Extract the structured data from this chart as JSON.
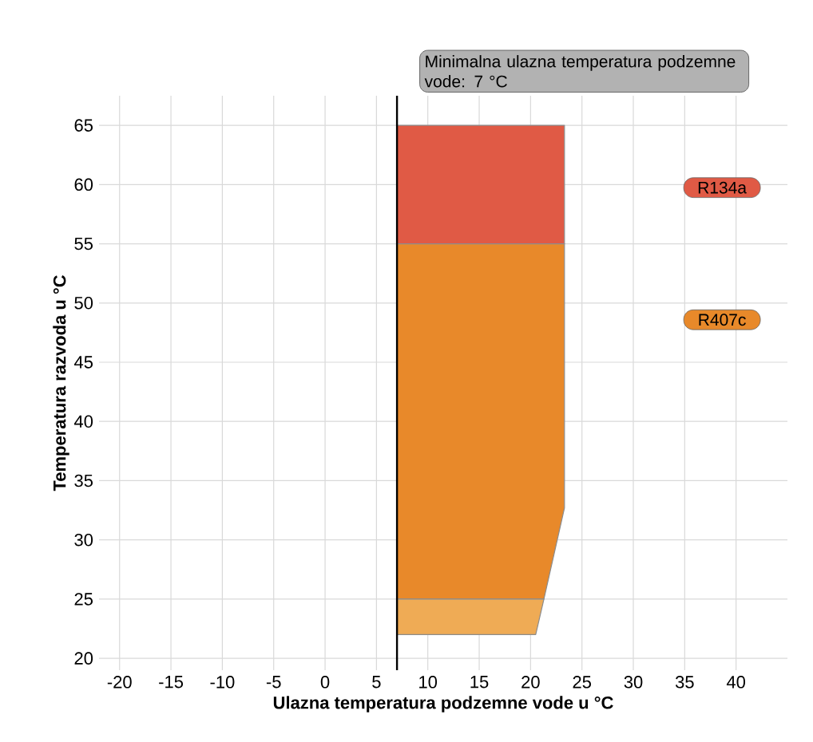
{
  "chart_data": {
    "type": "area",
    "xlabel": "Ulazna temperatura podzemne vode u °C",
    "ylabel": "Temperatura razvoda u °C",
    "series": [
      {
        "name": "R134a",
        "color": "#e05a45",
        "x": [
          7,
          7,
          23.3,
          23.3
        ],
        "values": [
          55,
          65,
          65,
          55
        ]
      },
      {
        "name": "R407c",
        "color": "#e8892a",
        "x": [
          7,
          7,
          23.3,
          23.3,
          21.3
        ],
        "values": [
          25,
          55,
          55,
          32.7,
          25
        ]
      },
      {
        "color": "#efab55",
        "x": [
          7,
          7,
          21.3,
          20.5
        ],
        "values": [
          22,
          25,
          25,
          22
        ]
      }
    ],
    "ref_lines": [
      {
        "axis": "x",
        "value": 7,
        "label": "Minimalna ulazna temperatura podzemne vode: 7 °C",
        "color": "#000000"
      }
    ],
    "xlim": [
      -22,
      45
    ],
    "ylim": [
      19,
      67.5
    ],
    "xticks": [
      -20,
      -15,
      -10,
      -5,
      0,
      5,
      10,
      15,
      20,
      25,
      30,
      35,
      40
    ],
    "yticks": [
      20,
      25,
      30,
      35,
      40,
      45,
      50,
      55,
      60,
      65
    ],
    "grid": true,
    "legend": "right"
  }
}
